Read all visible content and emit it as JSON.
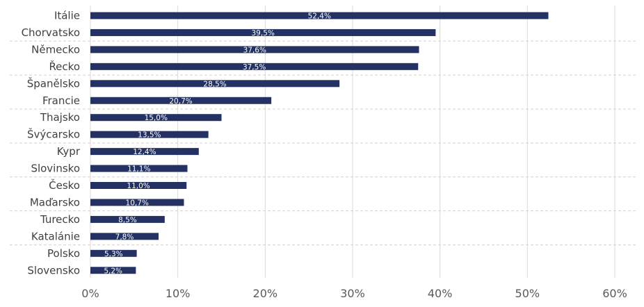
{
  "chart_data": {
    "type": "bar",
    "orientation": "horizontal",
    "title": "",
    "xlabel": "",
    "ylabel": "",
    "xlim": [
      0,
      60
    ],
    "x_ticks": [
      0,
      10,
      20,
      30,
      40,
      50,
      60
    ],
    "x_tick_labels": [
      "0%",
      "10%",
      "20%",
      "30%",
      "40%",
      "50%",
      "60%"
    ],
    "grid": true,
    "legend": "none",
    "bar_color": "#233163",
    "categories": [
      "Itálie",
      "Chorvatsko",
      "Německo",
      "Řecko",
      "Španělsko",
      "Francie",
      "Thajsko",
      "Švýcarsko",
      "Kypr",
      "Slovinsko",
      "Česko",
      "Maďarsko",
      "Turecko",
      "Katalánie",
      "Polsko",
      "Slovensko"
    ],
    "values": [
      52.4,
      39.5,
      37.6,
      37.5,
      28.5,
      20.7,
      15.0,
      13.5,
      12.4,
      11.1,
      11.0,
      10.7,
      8.5,
      7.8,
      5.3,
      5.2
    ],
    "data_labels": [
      "52,4%",
      "39,5%",
      "37,6%",
      "37,5%",
      "28,5%",
      "20,7%",
      "15,0%",
      "13,5%",
      "12,4%",
      "11,1%",
      "11,0%",
      "10,7%",
      "8,5%",
      "7,8%",
      "5,3%",
      "5,2%"
    ]
  }
}
